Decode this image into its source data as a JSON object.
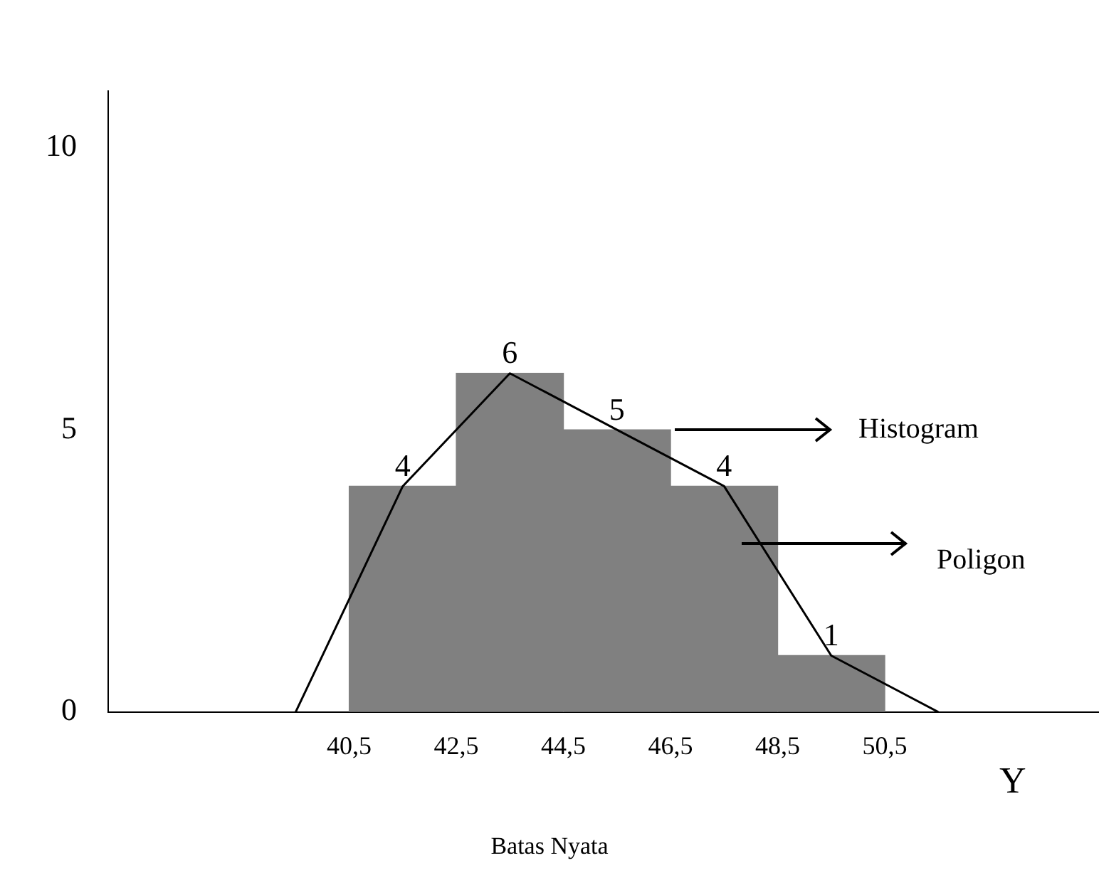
{
  "chart_data": {
    "type": "histogram",
    "xlabel": "Batas Nyata",
    "xlim": [
      36,
      54.5
    ],
    "xticks": [
      {
        "value": 40.5,
        "label": "40,5"
      },
      {
        "value": 42.5,
        "label": "42,5"
      },
      {
        "value": 44.5,
        "label": "44,5"
      },
      {
        "value": 46.5,
        "label": "46,5"
      },
      {
        "value": 48.5,
        "label": "48,5"
      },
      {
        "value": 50.5,
        "label": "50,5"
      }
    ],
    "ylim": [
      0,
      11
    ],
    "yticks": [
      0,
      5,
      10
    ],
    "grid": false,
    "legend": false,
    "series": [
      {
        "type": "histogram",
        "bins": [
          40.5,
          42.5,
          44.5,
          46.5,
          48.5,
          50.5
        ],
        "values": [
          4,
          6,
          5,
          4,
          1
        ],
        "color": "#808080",
        "value_labels": [
          "4",
          "6",
          "5",
          "4",
          "1"
        ]
      },
      {
        "type": "line",
        "x": [
          39.5,
          41.5,
          43.5,
          45.5,
          47.5,
          49.5,
          51.5
        ],
        "values": [
          0,
          4,
          6,
          5,
          4,
          1,
          0
        ],
        "color": "#000000",
        "marker": "none",
        "line_style": "solid"
      }
    ],
    "annotations": [
      {
        "text": "Histogram",
        "x": 46.5,
        "y": 5
      },
      "Poligon",
      "Y"
    ]
  }
}
